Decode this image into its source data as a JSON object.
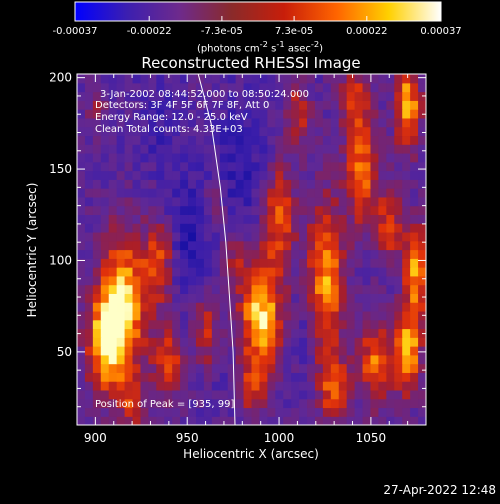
{
  "chart_data": {
    "type": "heatmap",
    "title": "Reconstructed RHESSI Image",
    "xlabel": "Heliocentric X (arcsec)",
    "ylabel": "Heliocentric Y (arcsec)",
    "xlim": [
      890,
      1080
    ],
    "ylim": [
      10,
      202
    ],
    "xticks": [
      900,
      950,
      1000,
      1050
    ],
    "yticks": [
      50,
      100,
      150,
      200
    ],
    "colorbar": {
      "min": -0.00037,
      "max": 0.00037,
      "ticks": [
        "-0.00037",
        "-0.00022",
        "-7.3e-05",
        "7.3e-05",
        "0.00022",
        "0.00037"
      ],
      "tick_values": [
        -0.00037,
        -0.00022,
        -7.3e-05,
        7.3e-05,
        0.00022,
        0.00037
      ],
      "units_html": "(photons cm<sup>-2</sup> s<sup>-1</sup> asec<sup>-2</sup>)",
      "colors": [
        "#0000ff",
        "#3c1fb0",
        "#6e2a8c",
        "#8a2a2a",
        "#c81e0a",
        "#ff6400",
        "#ffd000",
        "#ffffff"
      ]
    },
    "annotations": [
      "3-Jan-2002 08:44:52.000 to 08:50:24.000",
      "Detectors: 3F 4F 5F 6F 7F 8F, Att 0",
      "Energy Range: 12.0 - 25.0 keV",
      "Clean    Total counts: 4.33E+03"
    ],
    "peak_label": "Position of Peak = [935, 99]",
    "peak": [
      935,
      99
    ],
    "limb_curve": [
      [
        956,
        202
      ],
      [
        963,
        175
      ],
      [
        968,
        140
      ],
      [
        971,
        110
      ],
      [
        973,
        80
      ],
      [
        975,
        50
      ],
      [
        976,
        10
      ]
    ],
    "hotspots": [
      {
        "x": 915,
        "y": 75,
        "sx": 9,
        "sy": 28,
        "a": 1.0
      },
      {
        "x": 905,
        "y": 55,
        "sx": 7,
        "sy": 18,
        "a": 0.8
      },
      {
        "x": 935,
        "y": 99,
        "sx": 6,
        "sy": 16,
        "a": 0.7
      },
      {
        "x": 940,
        "y": 45,
        "sx": 6,
        "sy": 14,
        "a": 0.6
      },
      {
        "x": 960,
        "y": 60,
        "sx": 5,
        "sy": 18,
        "a": 0.55
      },
      {
        "x": 990,
        "y": 70,
        "sx": 8,
        "sy": 22,
        "a": 1.0
      },
      {
        "x": 1000,
        "y": 125,
        "sx": 6,
        "sy": 20,
        "a": 0.7
      },
      {
        "x": 1025,
        "y": 90,
        "sx": 7,
        "sy": 30,
        "a": 0.85
      },
      {
        "x": 1030,
        "y": 30,
        "sx": 6,
        "sy": 14,
        "a": 0.6
      },
      {
        "x": 1045,
        "y": 150,
        "sx": 6,
        "sy": 22,
        "a": 0.75
      },
      {
        "x": 1052,
        "y": 45,
        "sx": 6,
        "sy": 16,
        "a": 0.7
      },
      {
        "x": 1070,
        "y": 185,
        "sx": 5,
        "sy": 16,
        "a": 0.9
      },
      {
        "x": 1075,
        "y": 95,
        "sx": 5,
        "sy": 18,
        "a": 0.85
      },
      {
        "x": 1070,
        "y": 50,
        "sx": 5,
        "sy": 16,
        "a": 0.95
      },
      {
        "x": 1040,
        "y": 190,
        "sx": 5,
        "sy": 12,
        "a": 0.6
      },
      {
        "x": 1010,
        "y": 180,
        "sx": 5,
        "sy": 12,
        "a": 0.5
      },
      {
        "x": 1060,
        "y": 120,
        "sx": 5,
        "sy": 14,
        "a": 0.6
      },
      {
        "x": 975,
        "y": 100,
        "sx": 4,
        "sy": 10,
        "a": 0.45
      },
      {
        "x": 965,
        "y": 130,
        "sx": 4,
        "sy": 10,
        "a": 0.4
      },
      {
        "x": 900,
        "y": 185,
        "sx": 4,
        "sy": 8,
        "a": 0.3
      },
      {
        "x": 920,
        "y": 20,
        "sx": 5,
        "sy": 10,
        "a": 0.4
      },
      {
        "x": 985,
        "y": 30,
        "sx": 5,
        "sy": 10,
        "a": 0.45
      }
    ],
    "coldspots": [
      {
        "x": 950,
        "y": 110,
        "sx": 10,
        "sy": 25,
        "a": 0.6
      },
      {
        "x": 980,
        "y": 150,
        "sx": 12,
        "sy": 30,
        "a": 0.45
      },
      {
        "x": 935,
        "y": 175,
        "sx": 9,
        "sy": 18,
        "a": 0.35
      },
      {
        "x": 1015,
        "y": 60,
        "sx": 6,
        "sy": 20,
        "a": 0.35
      },
      {
        "x": 960,
        "y": 40,
        "sx": 8,
        "sy": 12,
        "a": 0.3
      }
    ]
  },
  "footer": {
    "timestamp": "27-Apr-2022 12:48"
  }
}
